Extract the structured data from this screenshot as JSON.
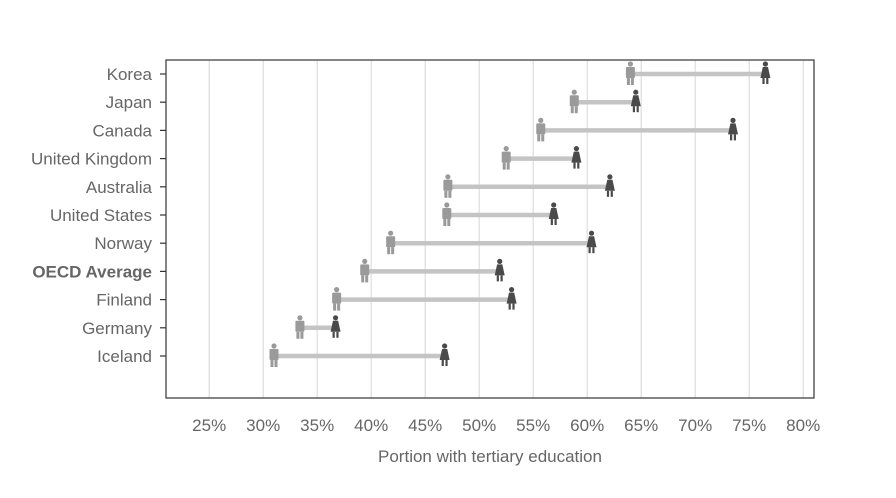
{
  "chart_data": {
    "type": "dumbbell",
    "xlabel": "Portion with tertiary education",
    "x_unit": "%",
    "xlim": [
      21,
      81
    ],
    "x_ticks": [
      25,
      30,
      35,
      40,
      45,
      50,
      55,
      60,
      65,
      70,
      75,
      80
    ],
    "x_tick_labels": [
      "25%",
      "30%",
      "35%",
      "40%",
      "45%",
      "50%",
      "55%",
      "60%",
      "65%",
      "70%",
      "75%",
      "80%"
    ],
    "grid": "vertical",
    "categories": [
      "Korea",
      "Japan",
      "Canada",
      "United Kingdom",
      "Australia",
      "United States",
      "Norway",
      "OECD Average",
      "Finland",
      "Germany",
      "Iceland"
    ],
    "highlight_category": "OECD Average",
    "series": [
      {
        "marker": "male-figure",
        "values": [
          64,
          58.8,
          55.7,
          52.5,
          47.1,
          47,
          41.8,
          39.4,
          36.8,
          33.4,
          31
        ]
      },
      {
        "marker": "female-figure",
        "values": [
          76.5,
          64.5,
          73.5,
          59,
          62.1,
          56.9,
          60.4,
          51.9,
          53,
          36.7,
          46.8
        ]
      }
    ],
    "colors": {
      "male": "#9a9a9a",
      "female": "#4a4a4a",
      "connector": "#c4c4c4",
      "grid": "#dddddd",
      "frame": "#333333",
      "text": "#666666"
    }
  }
}
